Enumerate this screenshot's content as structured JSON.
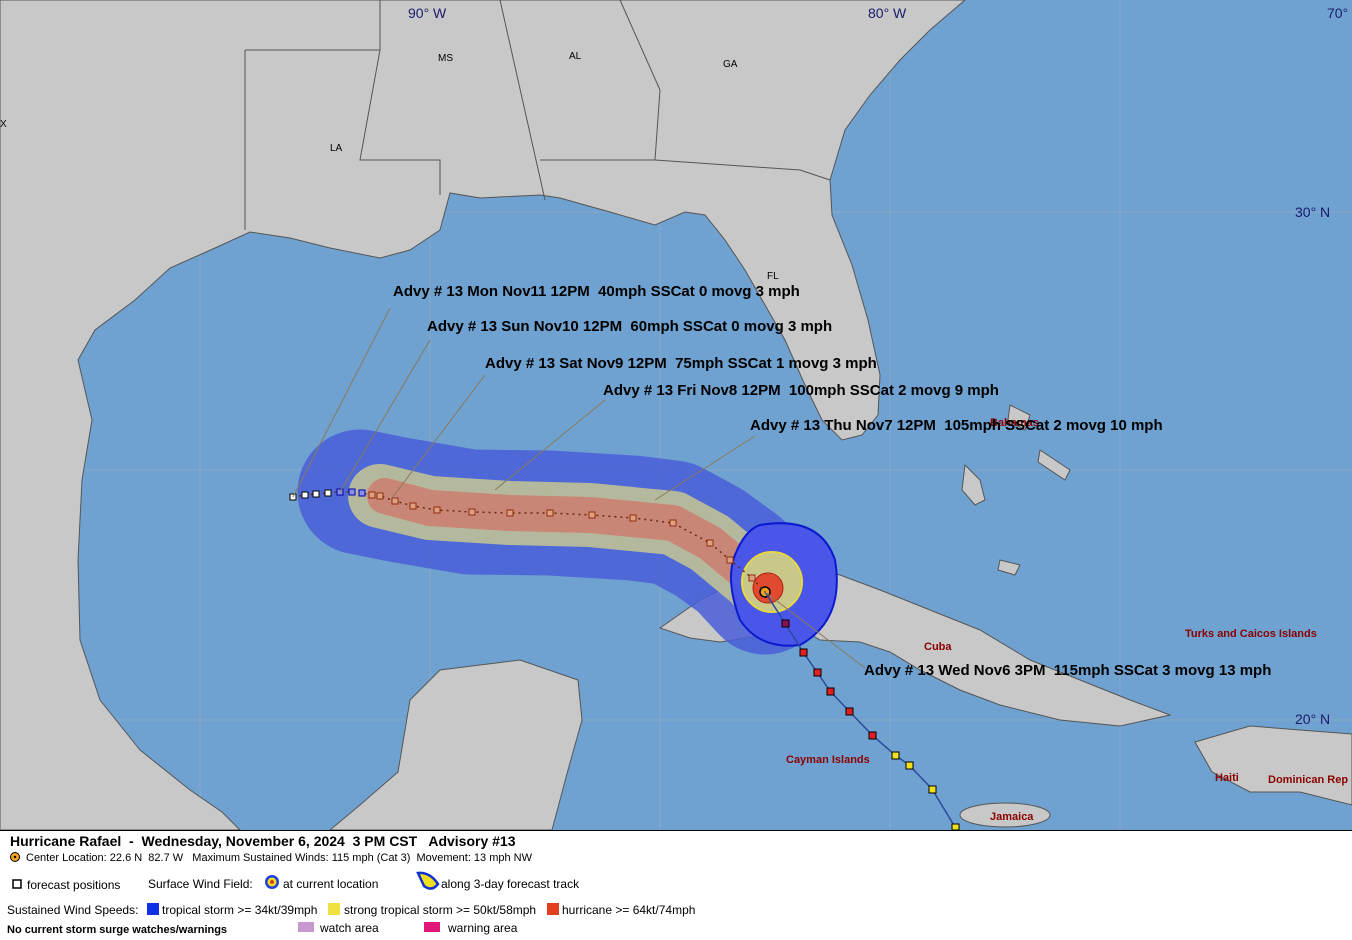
{
  "map": {
    "lon_labels": [
      "90° W",
      "80° W",
      "70°"
    ],
    "lat_labels": [
      "30° N",
      "20° N"
    ],
    "state_labels": [
      "MS",
      "AL",
      "GA",
      "LA",
      "FL",
      "X"
    ],
    "place_labels": [
      "Cuba",
      "Turks and Caicos Islands",
      "Cayman Islands",
      "Haiti",
      "Dominican Rep",
      "Jamaica",
      "Bahamas"
    ]
  },
  "advisories": [
    "Advy # 13 Mon Nov11 12PM  40mph SSCat 0 movg 3 mph",
    "Advy # 13 Sun Nov10 12PM  60mph SSCat 0 movg 3 mph",
    "Advy # 13 Sat Nov9 12PM  75mph SSCat 1 movg 3 mph",
    "Advy # 13 Fri Nov8 12PM  100mph SSCat 2 movg 9 mph",
    "Advy # 13 Thu Nov7 12PM  105mph SSCat 2 movg 10 mph",
    "Advy # 13 Wed Nov6 3PM  115mph SSCat 3 movg 13 mph"
  ],
  "legend": {
    "title": "Hurricane Rafael  -  Wednesday, November 6, 2024  3 PM CST   Advisory #13",
    "center_line": "Center Location: 22.6 N  82.7 W   Maximum Sustained Winds: 115 mph (Cat 3)  Movement: 13 mph NW",
    "forecast_positions": "forecast positions",
    "surface_wind_field": "Surface Wind Field:",
    "at_current_location": "at current location",
    "along_track": "along 3-day forecast track",
    "sustained_wind_speeds": "Sustained Wind Speeds:",
    "tropical_storm": "tropical storm >= 34kt/39mph",
    "strong_tropical_storm": "strong tropical storm >= 50kt/58mph",
    "hurricane": "hurricane >= 64kt/74mph",
    "no_surge": "No current storm surge watches/warnings",
    "watch_area": "watch area",
    "warning_area": "warning area"
  }
}
